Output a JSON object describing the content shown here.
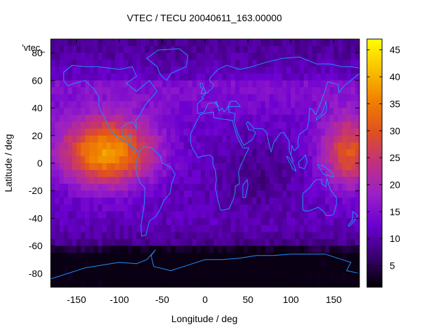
{
  "chart_data": {
    "type": "heatmap",
    "title": "VTEC / TECU 20040611_163.00000",
    "xlabel": "Longitude / deg",
    "ylabel": "Latitude / deg",
    "key_label": "'vtec_",
    "xlim": [
      -180,
      180
    ],
    "ylim": [
      -90,
      90
    ],
    "x_ticks": [
      -150,
      -100,
      -50,
      0,
      50,
      100,
      150
    ],
    "y_ticks": [
      -80,
      -60,
      -40,
      -20,
      0,
      20,
      40,
      60,
      80
    ],
    "colorbar": {
      "range": [
        1,
        47
      ],
      "ticks": [
        5,
        10,
        15,
        20,
        25,
        30,
        35,
        40,
        45
      ],
      "colors": [
        "#000000",
        "#3a0070",
        "#6a00d0",
        "#9a20c8",
        "#c03080",
        "#e05020",
        "#f08000",
        "#f8c000",
        "#ffff00"
      ]
    },
    "grid_step_deg": 5,
    "tec_model": {
      "description_values": "VTEC in TECU",
      "base_high_lat": 8,
      "base_mid_lat": 11,
      "equatorial_peak_lon": -115,
      "equatorial_peak_value": 38,
      "secondary_peak_lon": 170,
      "secondary_peak_value": 30,
      "southern_polar_min": 2
    },
    "coastlines": [
      {
        "name": "north-america",
        "lonlat": [
          [
            -165,
            66
          ],
          [
            -155,
            71
          ],
          [
            -140,
            70
          ],
          [
            -125,
            70
          ],
          [
            -100,
            68
          ],
          [
            -85,
            70
          ],
          [
            -80,
            63
          ],
          [
            -92,
            58
          ],
          [
            -80,
            52
          ],
          [
            -65,
            60
          ],
          [
            -56,
            52
          ],
          [
            -66,
            45
          ],
          [
            -70,
            42
          ],
          [
            -76,
            35
          ],
          [
            -81,
            31
          ],
          [
            -80,
            25
          ],
          [
            -84,
            30
          ],
          [
            -90,
            29
          ],
          [
            -97,
            26
          ],
          [
            -97,
            21
          ],
          [
            -92,
            18
          ],
          [
            -87,
            21
          ],
          [
            -88,
            15
          ],
          [
            -84,
            11
          ],
          [
            -79,
            9
          ],
          [
            -83,
            8
          ],
          [
            -87,
            12
          ],
          [
            -92,
            15
          ],
          [
            -105,
            20
          ],
          [
            -110,
            24
          ],
          [
            -115,
            30
          ],
          [
            -118,
            34
          ],
          [
            -122,
            38
          ],
          [
            -124,
            42
          ],
          [
            -124,
            48
          ],
          [
            -130,
            54
          ],
          [
            -140,
            60
          ],
          [
            -152,
            58
          ],
          [
            -160,
            56
          ],
          [
            -165,
            60
          ],
          [
            -165,
            66
          ]
        ]
      },
      {
        "name": "greenland",
        "lonlat": [
          [
            -55,
            82
          ],
          [
            -30,
            83
          ],
          [
            -20,
            78
          ],
          [
            -22,
            70
          ],
          [
            -40,
            65
          ],
          [
            -45,
            60
          ],
          [
            -52,
            64
          ],
          [
            -56,
            70
          ],
          [
            -68,
            76
          ],
          [
            -55,
            82
          ]
        ]
      },
      {
        "name": "south-america",
        "lonlat": [
          [
            -77,
            8
          ],
          [
            -72,
            12
          ],
          [
            -62,
            11
          ],
          [
            -52,
            5
          ],
          [
            -50,
            0
          ],
          [
            -40,
            -3
          ],
          [
            -35,
            -8
          ],
          [
            -39,
            -15
          ],
          [
            -41,
            -22
          ],
          [
            -48,
            -27
          ],
          [
            -53,
            -34
          ],
          [
            -58,
            -39
          ],
          [
            -65,
            -42
          ],
          [
            -67,
            -47
          ],
          [
            -69,
            -52
          ],
          [
            -74,
            -53
          ],
          [
            -75,
            -46
          ],
          [
            -73,
            -38
          ],
          [
            -71,
            -30
          ],
          [
            -70,
            -18
          ],
          [
            -76,
            -14
          ],
          [
            -81,
            -5
          ],
          [
            -80,
            1
          ],
          [
            -77,
            8
          ]
        ]
      },
      {
        "name": "eurasia",
        "lonlat": [
          [
            -9,
            36
          ],
          [
            -9,
            43
          ],
          [
            -2,
            47
          ],
          [
            -4,
            48
          ],
          [
            2,
            51
          ],
          [
            8,
            54
          ],
          [
            10,
            57
          ],
          [
            5,
            60
          ],
          [
            6,
            62
          ],
          [
            15,
            68
          ],
          [
            25,
            71
          ],
          [
            40,
            68
          ],
          [
            55,
            70
          ],
          [
            70,
            73
          ],
          [
            90,
            76
          ],
          [
            110,
            77
          ],
          [
            130,
            72
          ],
          [
            145,
            72
          ],
          [
            160,
            70
          ],
          [
            170,
            70
          ],
          [
            180,
            69
          ],
          [
            180,
            65
          ],
          [
            170,
            60
          ],
          [
            162,
            56
          ],
          [
            156,
            51
          ],
          [
            155,
            57
          ],
          [
            143,
            59
          ],
          [
            140,
            53
          ],
          [
            135,
            44
          ],
          [
            129,
            35
          ],
          [
            126,
            38
          ],
          [
            122,
            40
          ],
          [
            121,
            31
          ],
          [
            119,
            25
          ],
          [
            110,
            21
          ],
          [
            108,
            16
          ],
          [
            109,
            12
          ],
          [
            104,
            9
          ],
          [
            101,
            13
          ],
          [
            100,
            6
          ],
          [
            103,
            1
          ],
          [
            98,
            9
          ],
          [
            98,
            16
          ],
          [
            92,
            22
          ],
          [
            88,
            22
          ],
          [
            80,
            15
          ],
          [
            77,
            8
          ],
          [
            73,
            18
          ],
          [
            72,
            22
          ],
          [
            67,
            25
          ],
          [
            57,
            25
          ],
          [
            56,
            26
          ],
          [
            50,
            30
          ],
          [
            48,
            29
          ],
          [
            51,
            24
          ],
          [
            56,
            24
          ],
          [
            59,
            22
          ],
          [
            55,
            17
          ],
          [
            45,
            13
          ],
          [
            43,
            15
          ],
          [
            38,
            22
          ],
          [
            35,
            28
          ],
          [
            34,
            31
          ],
          [
            35,
            36
          ],
          [
            28,
            37
          ],
          [
            27,
            41
          ],
          [
            29,
            41
          ],
          [
            41,
            41
          ],
          [
            36,
            45
          ],
          [
            30,
            45
          ],
          [
            26,
            40
          ],
          [
            22,
            37
          ],
          [
            20,
            40
          ],
          [
            16,
            38
          ],
          [
            13,
            45
          ],
          [
            12,
            44
          ],
          [
            16,
            41
          ],
          [
            10,
            44
          ],
          [
            3,
            43
          ],
          [
            -1,
            37
          ],
          [
            -9,
            36
          ]
        ]
      },
      {
        "name": "africa",
        "lonlat": [
          [
            -17,
            21
          ],
          [
            -17,
            15
          ],
          [
            -15,
            11
          ],
          [
            -8,
            4
          ],
          [
            -3,
            5
          ],
          [
            5,
            6
          ],
          [
            9,
            4
          ],
          [
            9,
            -1
          ],
          [
            12,
            -5
          ],
          [
            13,
            -12
          ],
          [
            12,
            -18
          ],
          [
            15,
            -27
          ],
          [
            18,
            -34
          ],
          [
            22,
            -34
          ],
          [
            28,
            -33
          ],
          [
            33,
            -26
          ],
          [
            35,
            -21
          ],
          [
            35,
            -17
          ],
          [
            40,
            -15
          ],
          [
            39,
            -6
          ],
          [
            42,
            -1
          ],
          [
            51,
            11
          ],
          [
            44,
            11
          ],
          [
            38,
            18
          ],
          [
            33,
            28
          ],
          [
            32,
            31
          ],
          [
            20,
            32
          ],
          [
            10,
            33
          ],
          [
            10,
            37
          ],
          [
            -2,
            36
          ],
          [
            -6,
            35
          ],
          [
            -10,
            30
          ],
          [
            -17,
            21
          ]
        ]
      },
      {
        "name": "madagascar",
        "lonlat": [
          [
            44,
            -25
          ],
          [
            47,
            -25
          ],
          [
            50,
            -16
          ],
          [
            49,
            -12
          ],
          [
            44,
            -16
          ],
          [
            44,
            -25
          ]
        ]
      },
      {
        "name": "great-britain",
        "lonlat": [
          [
            -5,
            50
          ],
          [
            1,
            51
          ],
          [
            -2,
            55
          ],
          [
            -3,
            58
          ],
          [
            -6,
            58
          ],
          [
            -5,
            55
          ],
          [
            -3,
            54
          ],
          [
            -5,
            50
          ]
        ]
      },
      {
        "name": "japan",
        "lonlat": [
          [
            130,
            31
          ],
          [
            135,
            34
          ],
          [
            140,
            36
          ],
          [
            142,
            40
          ],
          [
            141,
            45
          ],
          [
            140,
            42
          ],
          [
            136,
            36
          ],
          [
            130,
            33
          ],
          [
            130,
            31
          ]
        ]
      },
      {
        "name": "australia",
        "lonlat": [
          [
            114,
            -22
          ],
          [
            114,
            -34
          ],
          [
            118,
            -35
          ],
          [
            124,
            -34
          ],
          [
            132,
            -32
          ],
          [
            138,
            -35
          ],
          [
            141,
            -38
          ],
          [
            147,
            -38
          ],
          [
            150,
            -37
          ],
          [
            153,
            -30
          ],
          [
            153,
            -25
          ],
          [
            146,
            -19
          ],
          [
            142,
            -11
          ],
          [
            141,
            -17
          ],
          [
            136,
            -15
          ],
          [
            136,
            -12
          ],
          [
            130,
            -12
          ],
          [
            126,
            -14
          ],
          [
            122,
            -18
          ],
          [
            114,
            -22
          ]
        ]
      },
      {
        "name": "new-zealand",
        "lonlat": [
          [
            172,
            -35
          ],
          [
            178,
            -38
          ],
          [
            175,
            -41
          ],
          [
            168,
            -46
          ],
          [
            167,
            -45
          ],
          [
            172,
            -41
          ],
          [
            172,
            -35
          ]
        ]
      },
      {
        "name": "borneo",
        "lonlat": [
          [
            109,
            1
          ],
          [
            110,
            -3
          ],
          [
            116,
            -4
          ],
          [
            119,
            1
          ],
          [
            117,
            6
          ],
          [
            113,
            3
          ],
          [
            109,
            1
          ]
        ]
      },
      {
        "name": "sumatra",
        "lonlat": [
          [
            95,
            5
          ],
          [
            98,
            4
          ],
          [
            104,
            -2
          ],
          [
            106,
            -6
          ],
          [
            102,
            -4
          ],
          [
            98,
            1
          ],
          [
            95,
            5
          ]
        ]
      },
      {
        "name": "new-guinea",
        "lonlat": [
          [
            131,
            -1
          ],
          [
            138,
            -2
          ],
          [
            147,
            -6
          ],
          [
            150,
            -10
          ],
          [
            143,
            -9
          ],
          [
            138,
            -8
          ],
          [
            131,
            -1
          ]
        ]
      },
      {
        "name": "antarctica",
        "lonlat": [
          [
            -180,
            -84
          ],
          [
            -160,
            -80
          ],
          [
            -140,
            -76
          ],
          [
            -120,
            -74
          ],
          [
            -100,
            -72
          ],
          [
            -80,
            -73
          ],
          [
            -68,
            -70
          ],
          [
            -58,
            -63
          ],
          [
            -63,
            -67
          ],
          [
            -60,
            -75
          ],
          [
            -40,
            -78
          ],
          [
            -20,
            -74
          ],
          [
            0,
            -70
          ],
          [
            20,
            -70
          ],
          [
            40,
            -69
          ],
          [
            60,
            -67
          ],
          [
            80,
            -67
          ],
          [
            100,
            -66
          ],
          [
            120,
            -66
          ],
          [
            140,
            -66
          ],
          [
            160,
            -70
          ],
          [
            170,
            -72
          ],
          [
            165,
            -78
          ],
          [
            180,
            -80
          ]
        ]
      }
    ]
  }
}
